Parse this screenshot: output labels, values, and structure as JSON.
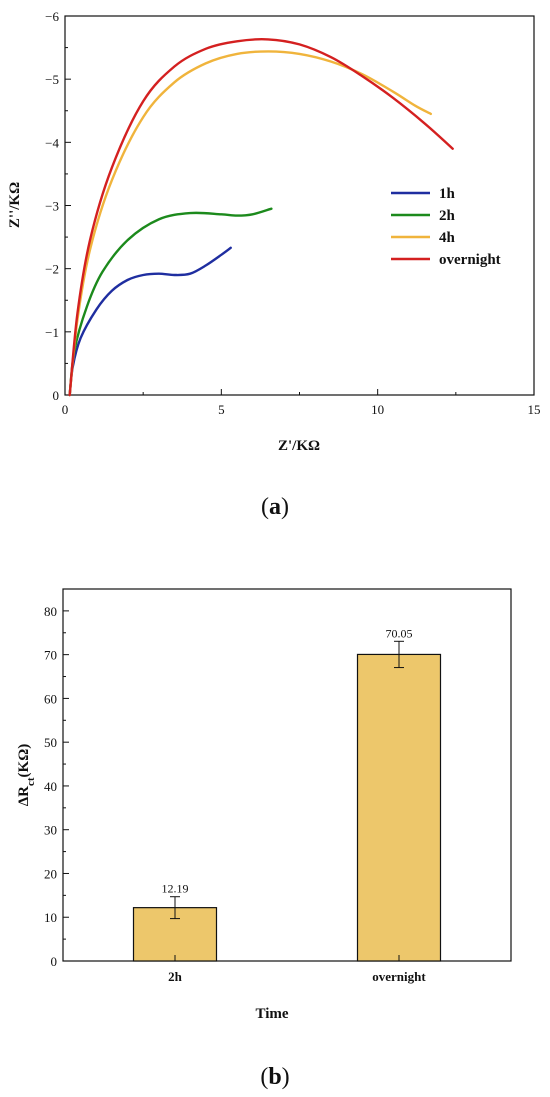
{
  "chart_data": [
    {
      "type": "line",
      "panel": "a",
      "caption": {
        "open": "(",
        "letter": "a",
        "close": ")"
      },
      "xlabel": "Z'/KΩ",
      "ylabel": "Z''/KΩ",
      "xlim": [
        0,
        15
      ],
      "ylim": [
        0,
        -6
      ],
      "xticks": [
        0,
        5,
        10,
        15
      ],
      "yticks": [
        0,
        -1,
        -2,
        -3,
        -4,
        -5,
        -6
      ],
      "grid": false,
      "legend": "center-right",
      "series": [
        {
          "name": "1h",
          "color": "#1f2ea0",
          "x": [
            0.15,
            0.25,
            0.5,
            1.0,
            1.5,
            2.0,
            2.5,
            3.0,
            3.5,
            4.0,
            4.5,
            5.0,
            5.3
          ],
          "y": [
            0,
            -0.45,
            -0.9,
            -1.35,
            -1.65,
            -1.82,
            -1.9,
            -1.92,
            -1.9,
            -1.92,
            -2.05,
            -2.22,
            -2.33
          ]
        },
        {
          "name": "2h",
          "color": "#1c8a1c",
          "x": [
            0.15,
            0.3,
            0.7,
            1.2,
            2.0,
            3.0,
            4.0,
            5.0,
            5.5,
            6.0,
            6.6
          ],
          "y": [
            0,
            -0.7,
            -1.4,
            -1.95,
            -2.45,
            -2.78,
            -2.88,
            -2.86,
            -2.84,
            -2.86,
            -2.95
          ]
        },
        {
          "name": "4h",
          "color": "#f0b43c",
          "x": [
            0.15,
            0.4,
            0.8,
            1.5,
            2.5,
            3.5,
            4.5,
            5.5,
            6.5,
            7.5,
            8.5,
            9.5,
            10.5,
            11.2,
            11.7
          ],
          "y": [
            0,
            -1.2,
            -2.3,
            -3.4,
            -4.4,
            -4.95,
            -5.25,
            -5.4,
            -5.44,
            -5.4,
            -5.28,
            -5.08,
            -4.8,
            -4.58,
            -4.45
          ]
        },
        {
          "name": "overnight",
          "color": "#d42020",
          "x": [
            0.15,
            0.4,
            0.8,
            1.5,
            2.5,
            3.5,
            4.5,
            5.5,
            6.5,
            7.5,
            8.5,
            9.5,
            10.5,
            11.5,
            12.4
          ],
          "y": [
            0,
            -1.3,
            -2.45,
            -3.6,
            -4.65,
            -5.2,
            -5.48,
            -5.6,
            -5.63,
            -5.55,
            -5.35,
            -5.05,
            -4.7,
            -4.3,
            -3.9
          ]
        }
      ]
    },
    {
      "type": "bar",
      "panel": "b",
      "caption": {
        "open": "(",
        "letter": "b",
        "close": ")"
      },
      "xlabel": "Time",
      "ylabel": "ΔR",
      "ylabel_sub": "ct",
      "ylabel_unit": "(KΩ)",
      "categories": [
        "2h",
        "overnight"
      ],
      "values": [
        12.19,
        70.05
      ],
      "value_labels": [
        "12.19",
        "70.05"
      ],
      "errors": [
        2.5,
        3.0
      ],
      "ylim": [
        0,
        85
      ],
      "yticks": [
        0,
        10,
        20,
        30,
        40,
        50,
        60,
        70,
        80
      ],
      "bar_color": "#edc76b",
      "grid": false
    }
  ]
}
